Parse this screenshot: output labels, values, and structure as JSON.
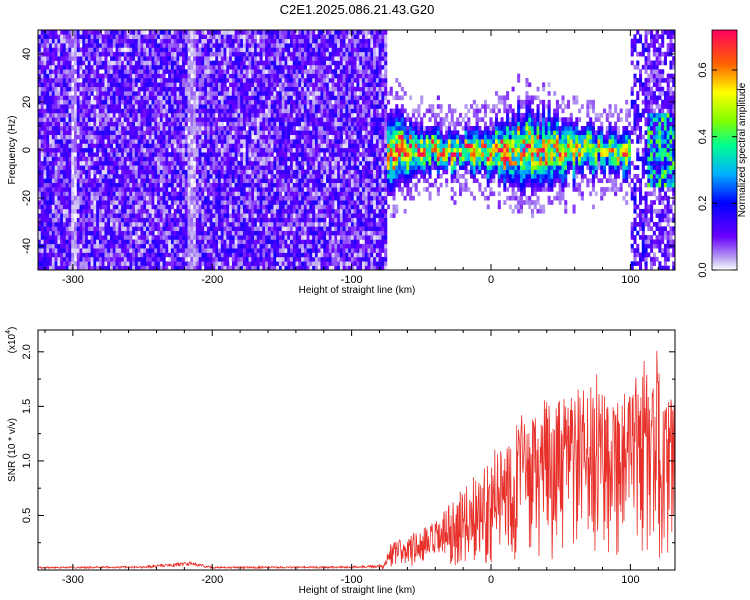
{
  "title": "C2E1.2025.086.21.43.G20",
  "chart_data": [
    {
      "type": "heatmap",
      "xlabel": "Height of straight line (km)",
      "ylabel": "Frequency (Hz)",
      "xlim": [
        -325,
        132
      ],
      "ylim": [
        -50,
        50
      ],
      "xticks": [
        -300,
        -200,
        -100,
        0,
        100
      ],
      "yticks": [
        -40,
        -20,
        0,
        20,
        40
      ],
      "xtick_labels": [
        "-300",
        "-200",
        "-100",
        "0",
        "100"
      ],
      "ytick_labels": [
        "-40",
        "-20",
        "0",
        "20",
        "40"
      ],
      "colorbar": {
        "label": "Normalized spectral amplitude",
        "range": [
          0,
          0.72
        ],
        "ticks": [
          0.0,
          0.2,
          0.4,
          0.6
        ],
        "tick_labels": [
          "0.0",
          "0.2",
          "0.4",
          "0.6"
        ]
      },
      "regions": [
        {
          "x": [
            -325,
            -75
          ],
          "y": [
            -50,
            50
          ],
          "amplitude": 0.1,
          "description": "broadband noise"
        },
        {
          "x": [
            -75,
            100
          ],
          "center_y": 0,
          "half_width": 12,
          "amplitude": 0.35,
          "peak": 0.7
        },
        {
          "x": [
            100,
            132
          ],
          "y": [
            -50,
            50
          ],
          "amplitude": 0.15
        }
      ]
    },
    {
      "type": "line",
      "xlabel": "Height of straight line (km)",
      "ylabel": "SNR (10 * v/v)",
      "y_multiplier_label": "(x10",
      "y_multiplier_exp": "4",
      "y_multiplier_close": ")",
      "xlim": [
        -325,
        132
      ],
      "ylim": [
        0,
        22000
      ],
      "xticks": [
        -300,
        -200,
        -100,
        0,
        100
      ],
      "yticks": [
        5000,
        10000,
        15000,
        20000
      ],
      "xtick_labels": [
        "-300",
        "-200",
        "-100",
        "0",
        "100"
      ],
      "ytick_labels": [
        "0.5",
        "1.0",
        "1.5",
        "2.0"
      ],
      "series": [
        {
          "color": "#e8302a",
          "envelope": {
            "x": [
              -325,
              -250,
              -215,
              -200,
              -100,
              -78,
              -72,
              -60,
              -50,
              -40,
              -30,
              -20,
              -10,
              0,
              10,
              20,
              30,
              40,
              50,
              60,
              70,
              80,
              90,
              100,
              110,
              115,
              120,
              125,
              132
            ],
            "y": [
              300,
              350,
              800,
              300,
              350,
              500,
              2500,
              3200,
              3800,
              4500,
              6000,
              7500,
              9000,
              10500,
              12500,
              14500,
              14000,
              16000,
              15500,
              17000,
              16500,
              19000,
              17000,
              16500,
              20000,
              16000,
              21500,
              15000,
              17500
            ]
          }
        }
      ]
    }
  ]
}
